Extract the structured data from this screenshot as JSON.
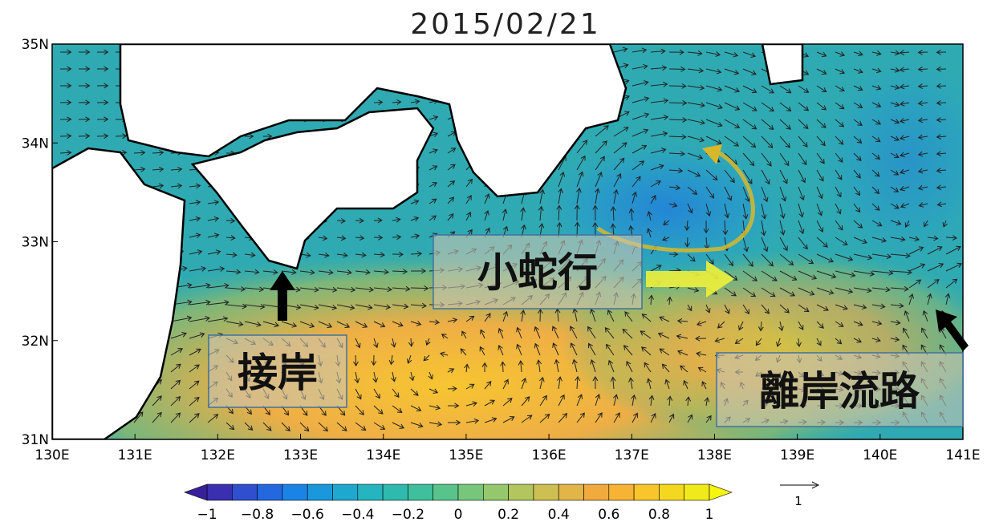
{
  "title": "2015/02/21",
  "latitude_ticks": [
    {
      "value": 35,
      "label": "35N"
    },
    {
      "value": 34,
      "label": "34N"
    },
    {
      "value": 33,
      "label": "33N"
    },
    {
      "value": 32,
      "label": "32N"
    },
    {
      "value": 31,
      "label": "31N"
    }
  ],
  "longitude_ticks": [
    {
      "value": 130,
      "label": "130E"
    },
    {
      "value": 131,
      "label": "131E"
    },
    {
      "value": 132,
      "label": "132E"
    },
    {
      "value": 133,
      "label": "133E"
    },
    {
      "value": 134,
      "label": "134E"
    },
    {
      "value": 135,
      "label": "135E"
    },
    {
      "value": 136,
      "label": "136E"
    },
    {
      "value": 137,
      "label": "137E"
    },
    {
      "value": 138,
      "label": "138E"
    },
    {
      "value": 139,
      "label": "139E"
    },
    {
      "value": 140,
      "label": "140E"
    },
    {
      "value": 141,
      "label": "141E"
    }
  ],
  "colorbar_ticks": [
    {
      "value": -1,
      "label": "−1"
    },
    {
      "value": -0.8,
      "label": "−0.8"
    },
    {
      "value": -0.6,
      "label": "−0.6"
    },
    {
      "value": -0.4,
      "label": "−0.4"
    },
    {
      "value": -0.2,
      "label": "−0.2"
    },
    0,
    0.2,
    0.4,
    0.6,
    0.8,
    1
  ],
  "annotations": {
    "small_meander": "小蛇行",
    "nearshore": "接岸",
    "offshore_path": "離岸流路"
  },
  "reference_vector": {
    "label": "1"
  }
}
